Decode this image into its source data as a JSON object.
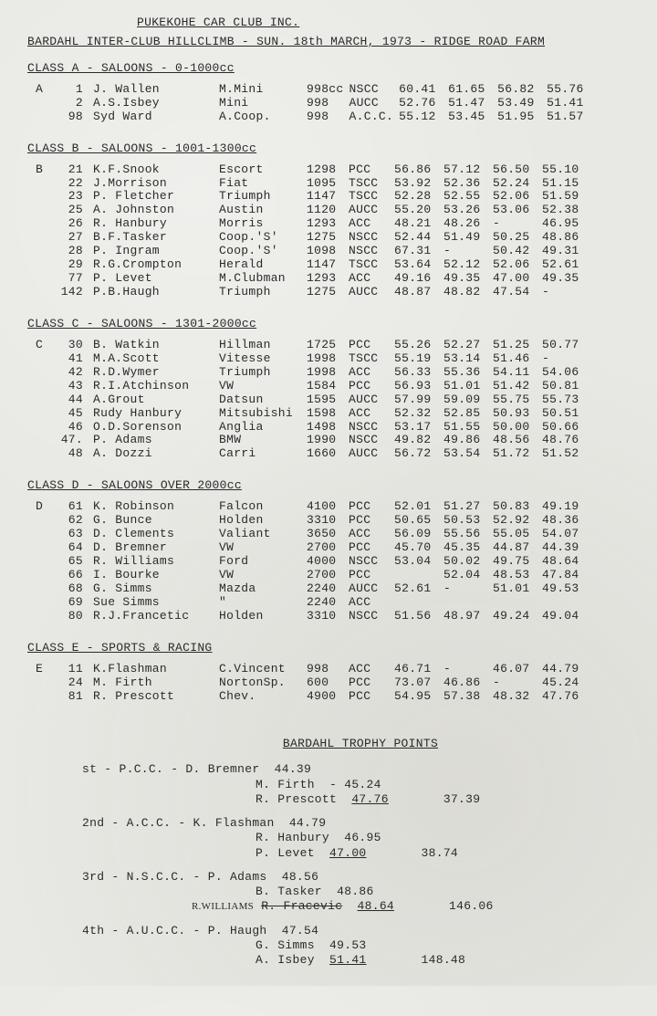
{
  "header": {
    "club": "PUKEKOHE CAR CLUB INC.",
    "event": "BARDAHL INTER-CLUB HILLCLIMB - SUN. 18th MARCH, 1973 - RIDGE ROAD FARM"
  },
  "classes": [
    {
      "title": "CLASS A - SALOONS - 0-1000cc",
      "prefix": "A",
      "rows": [
        {
          "num": "1",
          "name": "J. Wallen",
          "car": "M.Mini",
          "cc": "998cc",
          "club": "NSCC",
          "t1": "60.41",
          "t2": "61.65",
          "t3": "56.82",
          "t4": "55.76"
        },
        {
          "num": "2",
          "name": "A.S.Isbey",
          "car": "Mini",
          "cc": "998",
          "club": "AUCC",
          "t1": "52.76",
          "t2": "51.47",
          "t3": "53.49",
          "t4": "51.41"
        },
        {
          "num": "98",
          "name": "Syd Ward",
          "car": "A.Coop.",
          "cc": "998",
          "club": "A.C.C.",
          "t1": "55.12",
          "t2": "53.45",
          "t3": "51.95",
          "t4": "51.57"
        }
      ]
    },
    {
      "title": "CLASS B - SALOONS - 1001-1300cc",
      "prefix": "B",
      "rows": [
        {
          "num": "21",
          "name": "K.F.Snook",
          "car": "Escort",
          "cc": "1298",
          "club": "PCC",
          "t1": "56.86",
          "t2": "57.12",
          "t3": "56.50",
          "t4": "55.10"
        },
        {
          "num": "22",
          "name": "J.Morrison",
          "car": "Fiat",
          "cc": "1095",
          "club": "TSCC",
          "t1": "53.92",
          "t2": "52.36",
          "t3": "52.24",
          "t4": "51.15"
        },
        {
          "num": "23",
          "name": "P. Fletcher",
          "car": "Triumph",
          "cc": "1147",
          "club": "TSCC",
          "t1": "52.28",
          "t2": "52.55",
          "t3": "52.06",
          "t4": "51.59"
        },
        {
          "num": "25",
          "name": "A. Johnston",
          "car": "Austin",
          "cc": "1120",
          "club": "AUCC",
          "t1": "55.20",
          "t2": "53.26",
          "t3": "53.06",
          "t4": "52.38"
        },
        {
          "num": "26",
          "name": "R. Hanbury",
          "car": "Morris",
          "cc": "1293",
          "club": "ACC",
          "t1": "48.21",
          "t2": "48.26",
          "t3": "-",
          "t4": "46.95"
        },
        {
          "num": "27",
          "name": "B.F.Tasker",
          "car": "Coop.'S'",
          "cc": "1275",
          "club": "NSCC",
          "t1": "52.44",
          "t2": "51.49",
          "t3": "50.25",
          "t4": "48.86"
        },
        {
          "num": "28",
          "name": "P. Ingram",
          "car": "Coop.'S'",
          "cc": "1098",
          "club": "NSCC",
          "t1": "67.31",
          "t2": "-",
          "t3": "50.42",
          "t4": "49.31"
        },
        {
          "num": "29",
          "name": "R.G.Crompton",
          "car": "Herald",
          "cc": "1147",
          "club": "TSCC",
          "t1": "53.64",
          "t2": "52.12",
          "t3": "52.06",
          "t4": "52.61"
        },
        {
          "num": "77",
          "name": "P. Levet",
          "car": "M.Clubman",
          "cc": "1293",
          "club": "ACC",
          "t1": "49.16",
          "t2": "49.35",
          "t3": "47.00",
          "t4": "49.35"
        },
        {
          "num": "142",
          "name": "P.B.Haugh",
          "car": "Triumph",
          "cc": "1275",
          "club": "AUCC",
          "t1": "48.87",
          "t2": "48.82",
          "t3": "47.54",
          "t4": "-"
        }
      ]
    },
    {
      "title": "CLASS C - SALOONS - 1301-2000cc",
      "prefix": "C",
      "rows": [
        {
          "num": "30",
          "name": "B. Watkin",
          "car": "Hillman",
          "cc": "1725",
          "club": "PCC",
          "t1": "55.26",
          "t2": "52.27",
          "t3": "51.25",
          "t4": "50.77"
        },
        {
          "num": "41",
          "name": "M.A.Scott",
          "car": "Vitesse",
          "cc": "1998",
          "club": "TSCC",
          "t1": "55.19",
          "t2": "53.14",
          "t3": "51.46",
          "t4": "-"
        },
        {
          "num": "42",
          "name": "R.D.Wymer",
          "car": "Triumph",
          "cc": "1998",
          "club": "ACC",
          "t1": "56.33",
          "t2": "55.36",
          "t3": "54.11",
          "t4": "54.06"
        },
        {
          "num": "43",
          "name": "R.I.Atchinson",
          "car": "VW",
          "cc": "1584",
          "club": "PCC",
          "t1": "56.93",
          "t2": "51.01",
          "t3": "51.42",
          "t4": "50.81"
        },
        {
          "num": "44",
          "name": "A.Grout",
          "car": "Datsun",
          "cc": "1595",
          "club": "AUCC",
          "t1": "57.99",
          "t2": "59.09",
          "t3": "55.75",
          "t4": "55.73"
        },
        {
          "num": "45",
          "name": "Rudy Hanbury",
          "car": "Mitsubishi",
          "cc": "1598",
          "club": "ACC",
          "t1": "52.32",
          "t2": "52.85",
          "t3": "50.93",
          "t4": "50.51"
        },
        {
          "num": "46",
          "name": "O.D.Sorenson",
          "car": "Anglia",
          "cc": "1498",
          "club": "NSCC",
          "t1": "53.17",
          "t2": "51.55",
          "t3": "50.00",
          "t4": "50.66"
        },
        {
          "num": "47.",
          "name": "P. Adams",
          "car": "BMW",
          "cc": "1990",
          "club": "NSCC",
          "t1": "49.82",
          "t2": "49.86",
          "t3": "48.56",
          "t4": "48.76"
        },
        {
          "num": "48",
          "name": "A. Dozzi",
          "car": "Carri",
          "cc": "1660",
          "club": "AUCC",
          "t1": "56.72",
          "t2": "53.54",
          "t3": "51.72",
          "t4": "51.52"
        }
      ]
    },
    {
      "title": "CLASS D - SALOONS OVER 2000cc",
      "prefix": "D",
      "rows": [
        {
          "num": "61",
          "name": "K. Robinson",
          "car": "Falcon",
          "cc": "4100",
          "club": "PCC",
          "t1": "52.01",
          "t2": "51.27",
          "t3": "50.83",
          "t4": "49.19"
        },
        {
          "num": "62",
          "name": "G. Bunce",
          "car": "Holden",
          "cc": "3310",
          "club": "PCC",
          "t1": "50.65",
          "t2": "50.53",
          "t3": "52.92",
          "t4": "48.36"
        },
        {
          "num": "63",
          "name": "D. Clements",
          "car": "Valiant",
          "cc": "3650",
          "club": "ACC",
          "t1": "56.09",
          "t2": "55.56",
          "t3": "55.05",
          "t4": "54.07"
        },
        {
          "num": "64",
          "name": "D. Bremner",
          "car": "VW",
          "cc": "2700",
          "club": "PCC",
          "t1": "45.70",
          "t2": "45.35",
          "t3": "44.87",
          "t4": "44.39"
        },
        {
          "num": "65",
          "name": "R. Williams",
          "car": "Ford",
          "cc": "4000",
          "club": "NSCC",
          "t1": "53.04",
          "t2": "50.02",
          "t3": "49.75",
          "t4": "48.64"
        },
        {
          "num": "66",
          "name": "I. Bourke",
          "car": "VW",
          "cc": "2700",
          "club": "PCC",
          "t1": "",
          "t2": "52.04",
          "t3": "48.53",
          "t4": "47.84"
        },
        {
          "num": "68",
          "name": "G. Simms",
          "car": "Mazda",
          "cc": "2240",
          "club": "AUCC",
          "t1": "52.61",
          "t2": "-",
          "t3": "51.01",
          "t4": "49.53"
        },
        {
          "num": "69",
          "name": "Sue Simms",
          "car": "\"",
          "cc": "2240",
          "club": "ACC",
          "t1": "",
          "t2": "",
          "t3": "",
          "t4": ""
        },
        {
          "num": "80",
          "name": "R.J.Francetic",
          "car": "Holden",
          "cc": "3310",
          "club": "NSCC",
          "t1": "51.56",
          "t2": "48.97",
          "t3": "49.24",
          "t4": "49.04"
        }
      ]
    },
    {
      "title": "CLASS E - SPORTS & RACING",
      "prefix": "E",
      "rows": [
        {
          "num": "11",
          "name": "K.Flashman",
          "car": "C.Vincent",
          "cc": "998",
          "club": "ACC",
          "t1": "46.71",
          "t2": "-",
          "t3": "46.07",
          "t4": "44.79"
        },
        {
          "num": "24",
          "name": "M. Firth",
          "car": "NortonSp.",
          "cc": "600",
          "club": "PCC",
          "t1": "73.07",
          "t2": "46.86",
          "t3": "-",
          "t4": "45.24"
        },
        {
          "num": "81",
          "name": "R. Prescott",
          "car": "Chev.",
          "cc": "4900",
          "club": "PCC",
          "t1": "54.95",
          "t2": "57.38",
          "t3": "48.32",
          "t4": "47.76"
        }
      ]
    }
  ],
  "trophy": {
    "title": "BARDAHL TROPHY POINTS",
    "places": [
      {
        "pos": "st",
        "club": "P.C.C.",
        "lines": [
          {
            "name": "D. Bremner",
            "val": "44.39"
          },
          {
            "name": "M. Firth",
            "val": "- 45.24"
          },
          {
            "name": "R. Prescott",
            "val": "47.76",
            "under": true
          }
        ],
        "total": "37.39"
      },
      {
        "pos": "2nd",
        "club": "A.C.C.",
        "lines": [
          {
            "name": "K. Flashman",
            "val": "44.79"
          },
          {
            "name": "R. Hanbury",
            "val": "46.95"
          },
          {
            "name": "P. Levet",
            "val": "47.00",
            "under": true
          }
        ],
        "total": "38.74"
      },
      {
        "pos": "3rd",
        "club": "N.S.C.C.",
        "lines": [
          {
            "name": "P. Adams",
            "val": "48.56"
          },
          {
            "name": "B. Tasker",
            "val": "48.86"
          },
          {
            "name": "R. Fracevic",
            "val": "48.64",
            "strike": true,
            "under": true,
            "hand": "R.WILLIAMS"
          }
        ],
        "total": "146.06"
      },
      {
        "pos": "4th",
        "club": "A.U.C.C.",
        "lines": [
          {
            "name": "P. Haugh",
            "val": "47.54"
          },
          {
            "name": "G. Simms",
            "val": "49.53"
          },
          {
            "name": "A. Isbey",
            "val": "51.41",
            "under": true
          }
        ],
        "total": "148.48"
      }
    ]
  }
}
